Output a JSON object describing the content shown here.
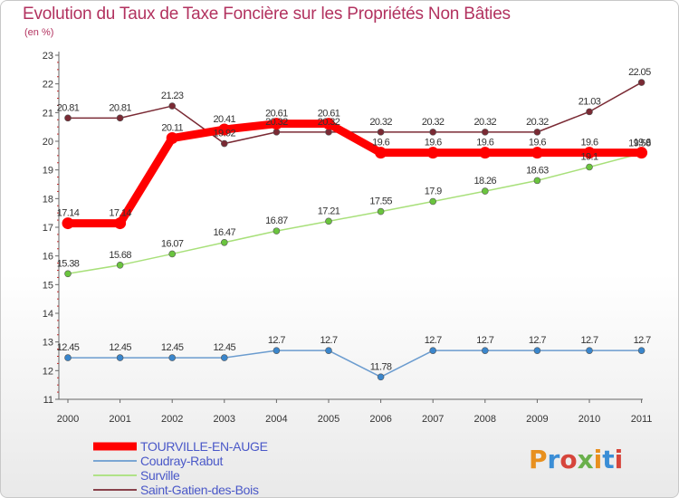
{
  "header": {
    "title": "Evolution du Taux de Taxe Foncière sur les Propriétés Non Bâties",
    "unit": "(en %)"
  },
  "logo": {
    "text": "Proxiti",
    "colors": [
      "#e8901e",
      "#3b8ed6",
      "#d6453b",
      "#6ab04c"
    ]
  },
  "chart_data": {
    "type": "line",
    "title": "Evolution du Taux de Taxe Foncière sur les Propriétés Non Bâties",
    "ylabel": "(en %)",
    "xlabel": "",
    "ylim": [
      11,
      23
    ],
    "yticks": [
      11,
      12,
      13,
      14,
      15,
      16,
      17,
      18,
      19,
      20,
      21,
      22,
      23
    ],
    "x": [
      "2000",
      "2001",
      "2002",
      "2003",
      "2004",
      "2005",
      "2006",
      "2007",
      "2008",
      "2009",
      "2010",
      "2011"
    ],
    "grid": false,
    "legend": "bottom-left",
    "series": [
      {
        "name": "TOURVILLE-EN-AUGE",
        "color": "#ff0000",
        "marker_fill": "#ff0000",
        "emphasis": true,
        "values": [
          17.14,
          17.14,
          20.11,
          20.41,
          20.61,
          20.61,
          19.6,
          19.6,
          19.6,
          19.6,
          19.6,
          19.6
        ],
        "labels": [
          "17.14",
          "17.14",
          "20.11",
          "20.41",
          "20.61",
          "20.61",
          "19.6",
          "19.6",
          "19.6",
          "19.6",
          "19.6",
          "19.6"
        ]
      },
      {
        "name": "Coudray-Rabut",
        "color": "#6b9ccf",
        "marker_fill": "#3a86cc",
        "values": [
          12.45,
          12.45,
          12.45,
          12.45,
          12.7,
          12.7,
          11.78,
          12.7,
          12.7,
          12.7,
          12.7,
          12.7
        ],
        "labels": [
          "12.45",
          "12.45",
          "12.45",
          "12.45",
          "12.7",
          "12.7",
          "11.78",
          "12.7",
          "12.7",
          "12.7",
          "12.7",
          "12.7"
        ]
      },
      {
        "name": "Surville",
        "color": "#a8e07a",
        "marker_fill": "#6ac43e",
        "values": [
          15.38,
          15.68,
          16.07,
          16.47,
          16.87,
          17.21,
          17.55,
          17.9,
          18.26,
          18.63,
          19.1,
          19.58
        ],
        "labels": [
          "15.38",
          "15.68",
          "16.07",
          "16.47",
          "16.87",
          "17.21",
          "17.55",
          "17.9",
          "18.26",
          "18.63",
          "19.1",
          "19.58"
        ]
      },
      {
        "name": "Saint-Gatien-des-Bois",
        "color": "#7a2a34",
        "marker_fill": "#7a2a34",
        "values": [
          20.81,
          20.81,
          21.23,
          19.92,
          20.32,
          20.32,
          20.32,
          20.32,
          20.32,
          20.32,
          21.03,
          22.05
        ],
        "labels": [
          "20.81",
          "20.81",
          "21.23",
          "19.92",
          "20.32",
          "20.32",
          "20.32",
          "20.32",
          "20.32",
          "20.32",
          "21.03",
          "22.05"
        ]
      }
    ]
  }
}
